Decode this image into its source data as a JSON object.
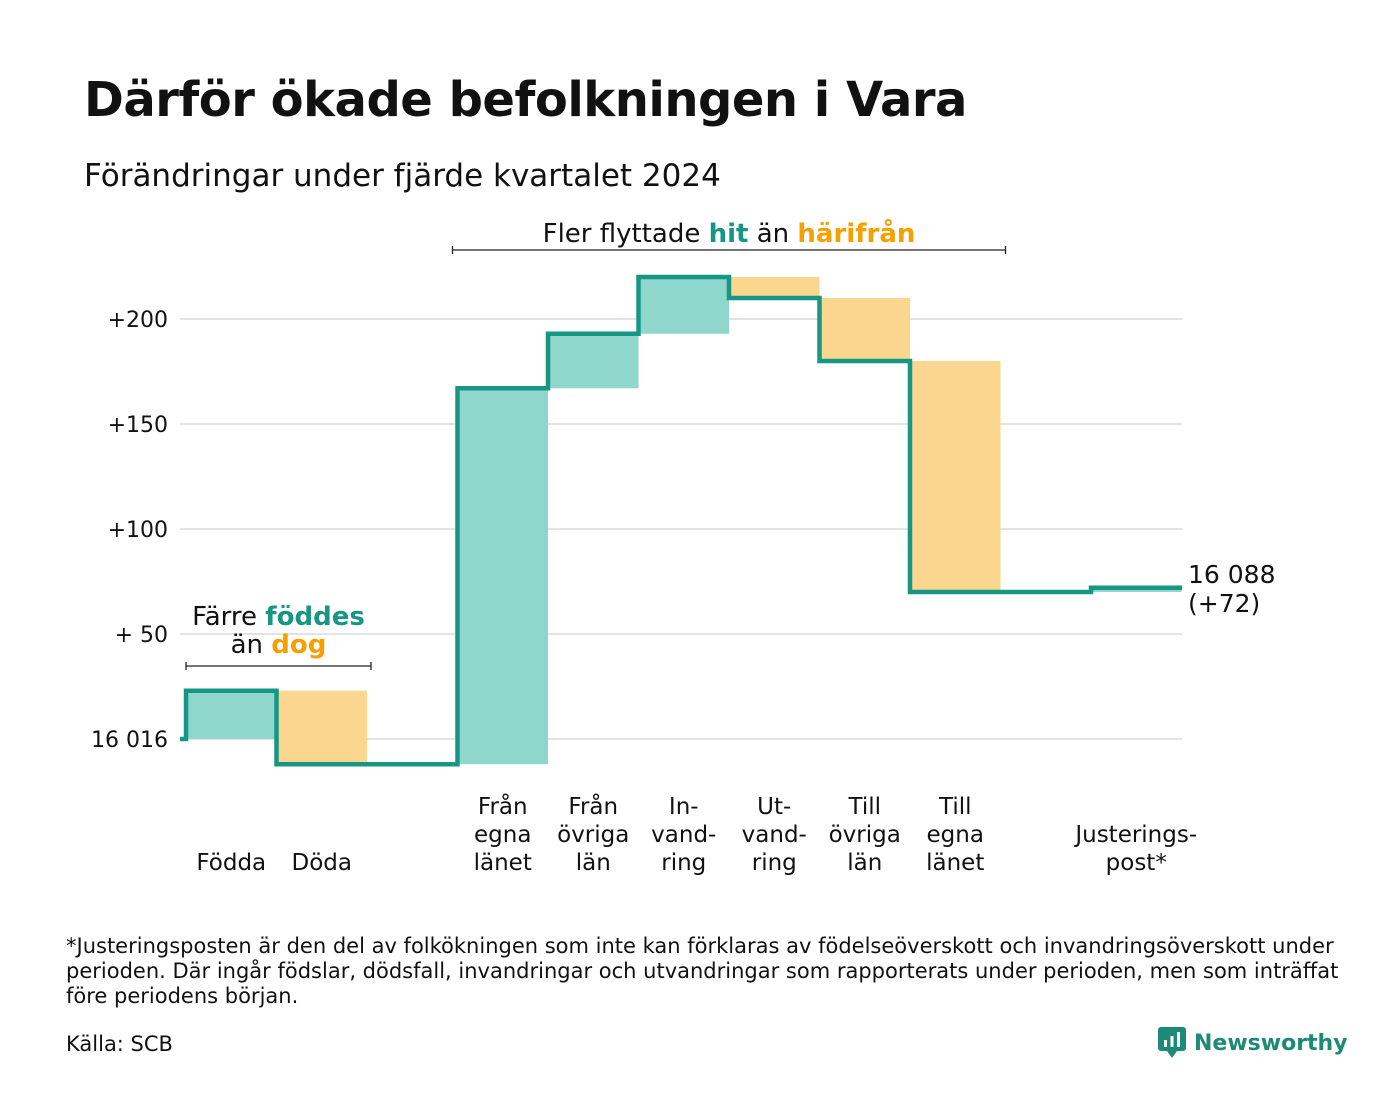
{
  "title": "Därför ökade befolkningen i Vara",
  "subtitle": "Förändringar under fjärde kvartalet 2024",
  "colors": {
    "increase": "#8fd6cc",
    "decrease": "#fbd68f",
    "line": "#169683",
    "increase_text": "#169683",
    "decrease_text": "#f59f00",
    "grid": "#e3e3e3"
  },
  "chart_data": {
    "type": "bar",
    "subtype": "waterfall",
    "baseline_label": "16 016",
    "y_ticks": [
      {
        "value": 0,
        "label": "16 016"
      },
      {
        "value": 50,
        "label": "+ 50"
      },
      {
        "value": 100,
        "label": "+100"
      },
      {
        "value": 150,
        "label": "+150"
      },
      {
        "value": 200,
        "label": "+200"
      }
    ],
    "ylim": [
      -12,
      220
    ],
    "steps": [
      {
        "label": [
          "Födda"
        ],
        "start": 0,
        "end": 23,
        "kind": "increase"
      },
      {
        "label": [
          "Döda"
        ],
        "start": 23,
        "end": -12,
        "kind": "decrease"
      },
      {
        "label": [],
        "start": -12,
        "end": -12,
        "kind": "flat"
      },
      {
        "label": [
          "Från",
          "egna",
          "länet"
        ],
        "start": -12,
        "end": 167,
        "kind": "increase"
      },
      {
        "label": [
          "Från",
          "övriga",
          "län"
        ],
        "start": 167,
        "end": 193,
        "kind": "increase"
      },
      {
        "label": [
          "In-",
          "vand-",
          "ring"
        ],
        "start": 193,
        "end": 220,
        "kind": "increase"
      },
      {
        "label": [
          "Ut-",
          "vand-",
          "ring"
        ],
        "start": 220,
        "end": 210,
        "kind": "decrease"
      },
      {
        "label": [
          "Till",
          "övriga",
          "län"
        ],
        "start": 210,
        "end": 180,
        "kind": "decrease"
      },
      {
        "label": [
          "Till",
          "egna",
          "länet"
        ],
        "start": 180,
        "end": 70,
        "kind": "decrease"
      },
      {
        "label": [],
        "start": 70,
        "end": 70,
        "kind": "flat"
      },
      {
        "label": [
          "Justerings-",
          "post*"
        ],
        "start": 70,
        "end": 72,
        "kind": "increase"
      }
    ],
    "end_label": [
      "16 088",
      "(+72)"
    ],
    "annotations": [
      {
        "parts": [
          [
            "Färre ",
            "plain"
          ],
          [
            "föddes",
            "increase"
          ]
        ],
        "line2": [
          [
            "än ",
            "plain"
          ],
          [
            "dog",
            "decrease"
          ]
        ],
        "from_step": 0,
        "to_step": 1
      },
      {
        "parts": [
          [
            "Fler flyttade ",
            "plain"
          ],
          [
            "hit",
            "increase"
          ],
          [
            "  än ",
            "plain"
          ],
          [
            "härifrån",
            "decrease"
          ]
        ],
        "from_step": 3,
        "to_step": 8
      }
    ]
  },
  "footnote": "*Justeringsposten är den del av folkökningen som inte kan förklaras av födelseöverskott och invandringsöverskott under perioden. Där ingår födslar, dödsfall, invandringar och utvandringar som rapporterats under perioden, men som inträffat före periodens början.",
  "source": "Källa: SCB",
  "brand": {
    "name": "Newsworthy",
    "icon": "newsworthy-logo-icon"
  }
}
